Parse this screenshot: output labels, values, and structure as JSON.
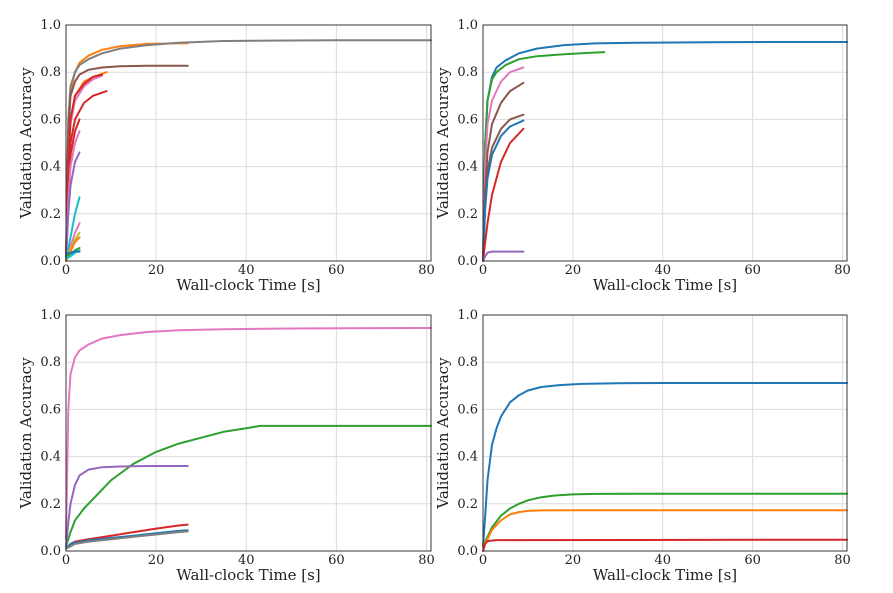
{
  "chart_data": [
    {
      "type": "line",
      "xlabel": "Wall-clock Time [s]",
      "ylabel": "Validation Accuracy",
      "xlim": [
        0,
        81
      ],
      "ylim": [
        0,
        1.0
      ],
      "xticks": [
        0,
        20,
        40,
        60,
        80
      ],
      "xtick_labels": [
        "0",
        "20",
        "40",
        "60",
        "80"
      ],
      "yticks": [
        0,
        0.2,
        0.4,
        0.6,
        0.8,
        1.0
      ],
      "ytick_labels": [
        "0.0",
        "0.2",
        "0.4",
        "0.6",
        "0.8",
        "1.0"
      ],
      "grid": true,
      "series": [
        {
          "color": "#ff7f0e",
          "x": [
            0,
            0.5,
            1,
            2,
            3,
            5,
            8,
            12,
            18,
            24,
            27
          ],
          "y": [
            0,
            0.55,
            0.72,
            0.8,
            0.84,
            0.87,
            0.895,
            0.91,
            0.92,
            0.922,
            0.923
          ]
        },
        {
          "color": "#7f7f7f",
          "x": [
            0,
            0.5,
            1,
            2,
            3,
            5,
            8,
            12,
            18,
            25,
            35,
            45,
            60,
            81
          ],
          "y": [
            0,
            0.6,
            0.74,
            0.8,
            0.83,
            0.855,
            0.88,
            0.9,
            0.915,
            0.925,
            0.932,
            0.934,
            0.935,
            0.935
          ]
        },
        {
          "color": "#8c564b",
          "x": [
            0,
            0.5,
            1,
            2,
            3,
            5,
            8,
            12,
            18,
            27
          ],
          "y": [
            0,
            0.55,
            0.7,
            0.76,
            0.79,
            0.81,
            0.82,
            0.825,
            0.827,
            0.827
          ]
        },
        {
          "color": "#ff7f0e",
          "x": [
            0,
            0.5,
            1,
            2,
            4,
            6,
            9
          ],
          "y": [
            0,
            0.4,
            0.6,
            0.7,
            0.76,
            0.78,
            0.8
          ]
        },
        {
          "color": "#e377c2",
          "x": [
            0,
            0.5,
            1,
            2,
            4,
            6,
            8
          ],
          "y": [
            0,
            0.4,
            0.58,
            0.68,
            0.74,
            0.77,
            0.785
          ]
        },
        {
          "color": "#d62728",
          "x": [
            0,
            0.5,
            1,
            2,
            4,
            6,
            8
          ],
          "y": [
            0,
            0.4,
            0.6,
            0.7,
            0.75,
            0.78,
            0.79
          ]
        },
        {
          "color": "#d62728",
          "x": [
            0,
            0.5,
            1,
            2,
            4,
            6,
            9
          ],
          "y": [
            0,
            0.3,
            0.5,
            0.6,
            0.67,
            0.7,
            0.72
          ]
        },
        {
          "color": "#d62728",
          "x": [
            0,
            0.5,
            1,
            2,
            3
          ],
          "y": [
            0,
            0.3,
            0.45,
            0.55,
            0.6
          ]
        },
        {
          "color": "#e377c2",
          "x": [
            0,
            0.5,
            1,
            2,
            3
          ],
          "y": [
            0,
            0.25,
            0.4,
            0.5,
            0.55
          ]
        },
        {
          "color": "#9467bd",
          "x": [
            0,
            0.5,
            1,
            2,
            3
          ],
          "y": [
            0,
            0.2,
            0.32,
            0.42,
            0.46
          ]
        },
        {
          "color": "#17becf",
          "x": [
            0,
            1,
            2,
            3
          ],
          "y": [
            0,
            0.1,
            0.2,
            0.27
          ]
        },
        {
          "color": "#e377c2",
          "x": [
            0,
            1,
            2,
            3
          ],
          "y": [
            0,
            0.06,
            0.12,
            0.16
          ]
        },
        {
          "color": "#bcbd22",
          "x": [
            0,
            1,
            2,
            3
          ],
          "y": [
            0,
            0.05,
            0.09,
            0.12
          ]
        },
        {
          "color": "#ff7f0e",
          "x": [
            0,
            1,
            2,
            3
          ],
          "y": [
            0,
            0.04,
            0.08,
            0.1
          ]
        },
        {
          "color": "#2ca02c",
          "x": [
            0,
            1,
            2,
            3
          ],
          "y": [
            0.02,
            0.03,
            0.045,
            0.055
          ]
        },
        {
          "color": "#17becf",
          "x": [
            0,
            1,
            2,
            3
          ],
          "y": [
            0.01,
            0.02,
            0.035,
            0.045
          ]
        },
        {
          "color": "#1f77b4",
          "x": [
            0,
            1,
            2,
            3
          ],
          "y": [
            0.03,
            0.035,
            0.04,
            0.04
          ]
        }
      ]
    },
    {
      "type": "line",
      "xlabel": "Wall-clock Time [s]",
      "ylabel": "Validation Accuracy",
      "xlim": [
        0,
        81
      ],
      "ylim": [
        0,
        1.0
      ],
      "xticks": [
        0,
        20,
        40,
        60,
        80
      ],
      "xtick_labels": [
        "0",
        "20",
        "40",
        "60",
        "80"
      ],
      "yticks": [
        0,
        0.2,
        0.4,
        0.6,
        0.8,
        1.0
      ],
      "ytick_labels": [
        "0.0",
        "0.2",
        "0.4",
        "0.6",
        "0.8",
        "1.0"
      ],
      "grid": true,
      "series": [
        {
          "color": "#1f77b4",
          "x": [
            0,
            0.5,
            1,
            2,
            3,
            5,
            8,
            12,
            18,
            25,
            35,
            50,
            65,
            81
          ],
          "y": [
            0,
            0.5,
            0.68,
            0.78,
            0.82,
            0.85,
            0.88,
            0.9,
            0.915,
            0.922,
            0.925,
            0.927,
            0.928,
            0.928
          ]
        },
        {
          "color": "#2ca02c",
          "x": [
            0,
            0.5,
            1,
            2,
            3,
            5,
            8,
            12,
            18,
            24,
            27
          ],
          "y": [
            0,
            0.5,
            0.68,
            0.77,
            0.8,
            0.83,
            0.855,
            0.868,
            0.876,
            0.882,
            0.885
          ]
        },
        {
          "color": "#e377c2",
          "x": [
            0,
            0.5,
            1,
            2,
            4,
            6,
            9
          ],
          "y": [
            0,
            0.4,
            0.58,
            0.68,
            0.76,
            0.8,
            0.82
          ]
        },
        {
          "color": "#8c564b",
          "x": [
            0,
            0.5,
            1,
            2,
            4,
            6,
            9
          ],
          "y": [
            0,
            0.3,
            0.46,
            0.58,
            0.67,
            0.72,
            0.755
          ]
        },
        {
          "color": "#8c564b",
          "x": [
            0,
            0.5,
            1,
            2,
            4,
            6,
            9
          ],
          "y": [
            0,
            0.25,
            0.38,
            0.48,
            0.56,
            0.6,
            0.62
          ]
        },
        {
          "color": "#1f77b4",
          "x": [
            0,
            0.5,
            1,
            2,
            4,
            6,
            9
          ],
          "y": [
            0,
            0.22,
            0.35,
            0.45,
            0.53,
            0.57,
            0.595
          ]
        },
        {
          "color": "#d62728",
          "x": [
            0,
            0.5,
            1,
            2,
            4,
            6,
            9
          ],
          "y": [
            0,
            0.08,
            0.16,
            0.28,
            0.42,
            0.5,
            0.56
          ]
        },
        {
          "color": "#9467bd",
          "x": [
            0,
            0.5,
            1,
            2,
            9
          ],
          "y": [
            0,
            0.02,
            0.035,
            0.04,
            0.04
          ]
        }
      ]
    },
    {
      "type": "line",
      "xlabel": "Wall-clock Time [s]",
      "ylabel": "Validation Accuracy",
      "xlim": [
        0,
        81
      ],
      "ylim": [
        0,
        1.0
      ],
      "xticks": [
        0,
        20,
        40,
        60,
        80
      ],
      "xtick_labels": [
        "0",
        "20",
        "40",
        "60",
        "80"
      ],
      "yticks": [
        0,
        0.2,
        0.4,
        0.6,
        0.8,
        1.0
      ],
      "ytick_labels": [
        "0.0",
        "0.2",
        "0.4",
        "0.6",
        "0.8",
        "1.0"
      ],
      "grid": true,
      "series": [
        {
          "color": "#e377c2",
          "x": [
            0,
            0.5,
            1,
            2,
            3,
            5,
            8,
            12,
            18,
            25,
            35,
            50,
            81
          ],
          "y": [
            0.05,
            0.6,
            0.75,
            0.82,
            0.85,
            0.875,
            0.9,
            0.915,
            0.928,
            0.935,
            0.94,
            0.943,
            0.945
          ]
        },
        {
          "color": "#2ca02c",
          "x": [
            0,
            1,
            2,
            4,
            6,
            10,
            15,
            20,
            25,
            30,
            35,
            40,
            43,
            60,
            81
          ],
          "y": [
            0.02,
            0.08,
            0.13,
            0.18,
            0.22,
            0.3,
            0.37,
            0.42,
            0.455,
            0.48,
            0.505,
            0.52,
            0.53,
            0.53,
            0.53
          ]
        },
        {
          "color": "#9467bd",
          "x": [
            0,
            0.5,
            1,
            2,
            3,
            5,
            8,
            12,
            18,
            27
          ],
          "y": [
            0.02,
            0.12,
            0.2,
            0.28,
            0.32,
            0.345,
            0.355,
            0.358,
            0.36,
            0.36
          ]
        },
        {
          "color": "#d62728",
          "x": [
            0,
            1,
            2,
            5,
            10,
            15,
            20,
            25,
            27
          ],
          "y": [
            0.01,
            0.03,
            0.04,
            0.05,
            0.065,
            0.08,
            0.095,
            0.108,
            0.112
          ]
        },
        {
          "color": "#1f77b4",
          "x": [
            0,
            1,
            2,
            5,
            10,
            15,
            20,
            25,
            27
          ],
          "y": [
            0.01,
            0.03,
            0.035,
            0.045,
            0.055,
            0.065,
            0.075,
            0.085,
            0.088
          ]
        },
        {
          "color": "#7f7f7f",
          "x": [
            0,
            1,
            2,
            5,
            10,
            15,
            20,
            25,
            27
          ],
          "y": [
            0.01,
            0.02,
            0.03,
            0.04,
            0.05,
            0.06,
            0.07,
            0.08,
            0.083
          ]
        }
      ]
    },
    {
      "type": "line",
      "xlabel": "Wall-clock Time [s]",
      "ylabel": "Validation Accuracy",
      "xlim": [
        0,
        81
      ],
      "ylim": [
        0,
        1.0
      ],
      "xticks": [
        0,
        20,
        40,
        60,
        80
      ],
      "xtick_labels": [
        "0",
        "20",
        "40",
        "60",
        "80"
      ],
      "yticks": [
        0,
        0.2,
        0.4,
        0.6,
        0.8,
        1.0
      ],
      "ytick_labels": [
        "0.0",
        "0.2",
        "0.4",
        "0.6",
        "0.8",
        "1.0"
      ],
      "grid": true,
      "series": [
        {
          "color": "#1f77b4",
          "x": [
            0,
            0.5,
            1,
            2,
            3,
            4,
            6,
            8,
            10,
            13,
            17,
            22,
            30,
            40,
            50,
            65,
            81
          ],
          "y": [
            0.02,
            0.15,
            0.3,
            0.45,
            0.52,
            0.57,
            0.63,
            0.66,
            0.68,
            0.695,
            0.703,
            0.708,
            0.711,
            0.712,
            0.712,
            0.712,
            0.712
          ]
        },
        {
          "color": "#2ca02c",
          "x": [
            0,
            1,
            2,
            4,
            6,
            8,
            10,
            13,
            16,
            20,
            25,
            40,
            60,
            81
          ],
          "y": [
            0.02,
            0.06,
            0.1,
            0.15,
            0.18,
            0.2,
            0.215,
            0.228,
            0.235,
            0.24,
            0.242,
            0.243,
            0.243,
            0.243
          ]
        },
        {
          "color": "#ff7f0e",
          "x": [
            0,
            1,
            2,
            4,
            6,
            8,
            10,
            13,
            20,
            40,
            60,
            81
          ],
          "y": [
            0.02,
            0.05,
            0.09,
            0.13,
            0.155,
            0.165,
            0.17,
            0.172,
            0.173,
            0.173,
            0.173,
            0.173
          ]
        },
        {
          "color": "#d62728",
          "x": [
            0,
            0.5,
            1,
            3,
            81
          ],
          "y": [
            0.0,
            0.03,
            0.042,
            0.046,
            0.048
          ]
        }
      ]
    }
  ]
}
